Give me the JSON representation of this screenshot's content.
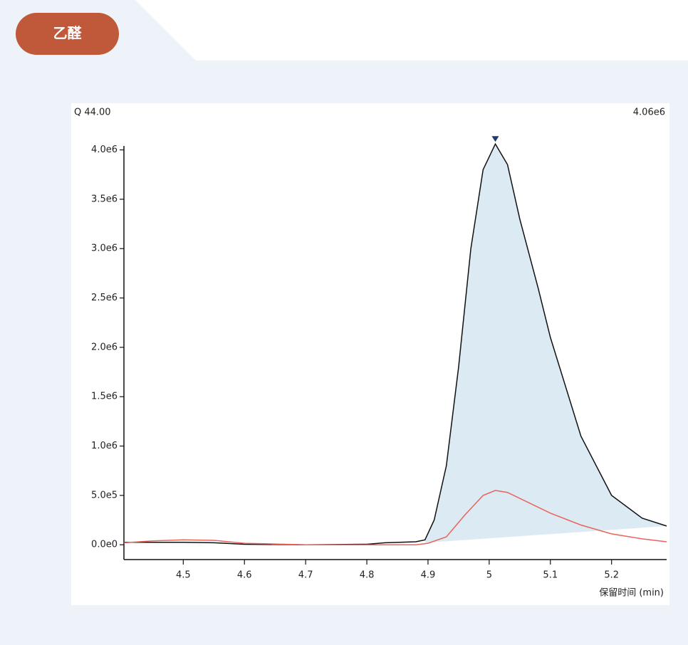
{
  "chart_data": {
    "type": "line",
    "title": "乙醛",
    "ion_label": "Q 44.00",
    "max_label": "4.06e6",
    "xlabel": "保留时间 (min)",
    "xlim": [
      4.403,
      5.29
    ],
    "ylim": [
      -150000,
      4040000
    ],
    "xticks": [
      4.5,
      4.6,
      4.7,
      4.8,
      4.9,
      5.0,
      5.1,
      5.2
    ],
    "yticks": [
      {
        "value": 0,
        "label": "0.0e0"
      },
      {
        "value": 500000,
        "label": "5.0e5"
      },
      {
        "value": 1000000,
        "label": "1.0e6"
      },
      {
        "value": 1500000,
        "label": "1.5e6"
      },
      {
        "value": 2000000,
        "label": "2.0e6"
      },
      {
        "value": 2500000,
        "label": "2.5e6"
      },
      {
        "value": 3000000,
        "label": "3.0e6"
      },
      {
        "value": 3500000,
        "label": "3.5e6"
      },
      {
        "value": 4000000,
        "label": "4.0e6"
      }
    ],
    "series": [
      {
        "color": "#111111",
        "x": [
          4.403,
          4.5,
          4.55,
          4.6,
          4.7,
          4.8,
          4.83,
          4.88,
          4.895,
          4.91,
          4.93,
          4.95,
          4.97,
          4.99,
          5.01,
          5.03,
          5.05,
          5.08,
          5.1,
          5.15,
          5.2,
          5.25,
          5.29
        ],
        "values": [
          25000,
          25000,
          20000,
          5000,
          0,
          5000,
          20000,
          30000,
          50000,
          250000,
          800000,
          1800000,
          3000000,
          3800000,
          4060000,
          3850000,
          3300000,
          2600000,
          2100000,
          1100000,
          500000,
          270000,
          190000
        ]
      },
      {
        "color": "#e8645a",
        "x": [
          4.403,
          4.45,
          4.5,
          4.55,
          4.6,
          4.7,
          4.8,
          4.88,
          4.9,
          4.93,
          4.96,
          4.99,
          5.01,
          5.03,
          5.06,
          5.1,
          5.15,
          5.2,
          5.25,
          5.29
        ],
        "values": [
          20000,
          40000,
          50000,
          45000,
          15000,
          0,
          0,
          0,
          15000,
          80000,
          300000,
          500000,
          550000,
          530000,
          440000,
          320000,
          200000,
          110000,
          60000,
          30000
        ]
      }
    ],
    "baseline": {
      "color": "#dcebf3",
      "x": [
        4.895,
        5.29
      ],
      "values": [
        20000,
        190000
      ]
    },
    "peak": {
      "x": 5.01,
      "value": 4060000,
      "color": "#1f3a6e"
    }
  }
}
